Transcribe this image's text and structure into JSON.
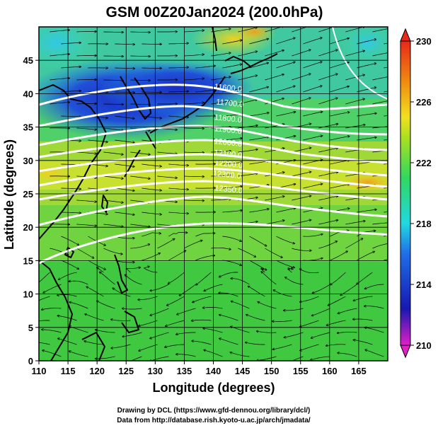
{
  "title": "GSM 00Z20Jan2024 (200.0hPa)",
  "xlabel": "Longitude (degrees)",
  "ylabel": "Latitude  (degrees)",
  "credits": [
    "Drawing by DCL (https://www.gfd-dennou.org/library/dcl/)",
    "Data from http://database.rish.kyoto-u.ac.jp/arch/jmadata/"
  ],
  "colors": {
    "coast": "#000000",
    "contour": "#ffffff",
    "streamline": "#000000",
    "grid": "#000000"
  },
  "map": {
    "lon_range": [
      110,
      170
    ],
    "lat_range": [
      0,
      50
    ],
    "lon_ticks": [
      110,
      115,
      120,
      125,
      130,
      135,
      140,
      145,
      150,
      155,
      160,
      165
    ],
    "lat_ticks": [
      0,
      5,
      10,
      15,
      20,
      25,
      30,
      35,
      40,
      45
    ],
    "field": "temperature",
    "contour_field": "geopotential height",
    "contour_labels": [
      {
        "text": "11600.0",
        "lon": 142.5,
        "lat": 40.5
      },
      {
        "text": "11700.0",
        "lon": 142.8,
        "lat": 38.2
      },
      {
        "text": "11800.0",
        "lon": 142.5,
        "lat": 35.9
      },
      {
        "text": "11900.0",
        "lon": 142.5,
        "lat": 34.2
      },
      {
        "text": "12000.0",
        "lon": 142.5,
        "lat": 32.3
      },
      {
        "text": "12100.0",
        "lon": 142.5,
        "lat": 30.6
      },
      {
        "text": "12200.0",
        "lon": 142.6,
        "lat": 29.1
      },
      {
        "text": "12300.0",
        "lon": 142.3,
        "lat": 27.5
      },
      {
        "text": "12350.0",
        "lon": 142.6,
        "lat": 25.3
      }
    ]
  },
  "colorbar": {
    "ticks": [
      210,
      214,
      218,
      222,
      226,
      230
    ],
    "range": [
      210,
      230
    ],
    "stops": [
      "#e020c8",
      "#1818b0",
      "#1e6ee8",
      "#22d8e0",
      "#30d860",
      "#a8e020",
      "#f0e020",
      "#f09010",
      "#e82818"
    ]
  }
}
